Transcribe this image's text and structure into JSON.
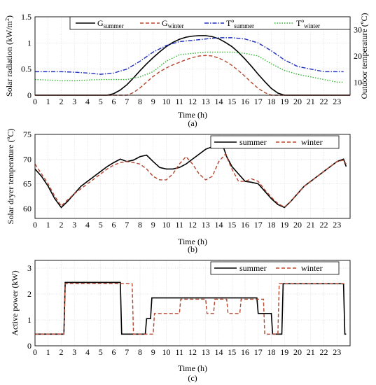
{
  "chart_data": [
    {
      "type": "line",
      "caption": "(a)",
      "xlabel": "Time (h)",
      "ylabel_left": "Solar radiation (kW/m",
      "ylabel_left_sup": "2",
      "ylabel_left_end": ")",
      "ylabel_right": "Outdoor temperature (ºC)",
      "xlim": [
        0,
        24
      ],
      "ylim_left": [
        0,
        1.5
      ],
      "ylim_right": [
        5,
        35
      ],
      "x_ticks": [
        "0",
        "1",
        "2",
        "3",
        "4",
        "5",
        "6",
        "7",
        "8",
        "9",
        "10",
        "11",
        "12",
        "13",
        "14",
        "15",
        "16",
        "17",
        "18",
        "19",
        "20",
        "21",
        "22",
        "23"
      ],
      "y_ticks_left": [
        "0",
        "0.5",
        "1",
        "1.5"
      ],
      "y_ticks_right": [
        "10",
        "20",
        "30"
      ],
      "grid": true,
      "legend_position": "top",
      "series": [
        {
          "name": "G",
          "name_sub": "summer",
          "axis": "left",
          "color": "#000000",
          "style": "solid",
          "x": [
            0,
            5.5,
            6,
            6.5,
            7,
            7.5,
            8,
            8.5,
            9,
            9.5,
            10,
            10.5,
            11,
            11.5,
            12,
            12.5,
            13,
            13.5,
            14,
            14.5,
            15,
            15.5,
            16,
            16.5,
            17,
            17.5,
            18,
            18.5,
            19,
            24
          ],
          "y": [
            0,
            0,
            0.03,
            0.1,
            0.2,
            0.33,
            0.47,
            0.6,
            0.72,
            0.83,
            0.93,
            1.01,
            1.07,
            1.11,
            1.13,
            1.14,
            1.14,
            1.12,
            1.08,
            1.01,
            0.93,
            0.82,
            0.69,
            0.55,
            0.4,
            0.26,
            0.13,
            0.04,
            0,
            0
          ]
        },
        {
          "name": "G",
          "name_sub": "winter",
          "axis": "left",
          "color": "#b5462f",
          "style": "dashed",
          "x": [
            0,
            7,
            7.5,
            8,
            8.5,
            9,
            9.5,
            10,
            10.5,
            11,
            11.5,
            12,
            12.5,
            13,
            13.5,
            14,
            14.5,
            15,
            15.5,
            16,
            16.5,
            17,
            17.5,
            18,
            24
          ],
          "y": [
            0,
            0,
            0.05,
            0.14,
            0.25,
            0.36,
            0.45,
            0.52,
            0.58,
            0.63,
            0.68,
            0.72,
            0.75,
            0.76,
            0.75,
            0.71,
            0.65,
            0.57,
            0.47,
            0.36,
            0.24,
            0.13,
            0.05,
            0,
            0
          ]
        },
        {
          "name": "Tº",
          "name_sub": "summer",
          "axis": "right",
          "color": "#1f2fbf",
          "style": "dashdot",
          "x": [
            0,
            1,
            2,
            3,
            4,
            5,
            6,
            7,
            8,
            9,
            10,
            11,
            12,
            13,
            14,
            15,
            16,
            17,
            18,
            19,
            20,
            21,
            22,
            23,
            23.5
          ],
          "y": [
            14,
            14,
            14,
            13.8,
            13.5,
            13,
            13.5,
            15,
            18,
            21.5,
            24,
            25.5,
            26,
            26.5,
            27,
            27,
            26.5,
            25,
            22,
            18.5,
            16,
            15,
            14,
            14,
            14
          ]
        },
        {
          "name": "Tº",
          "name_sub": "winter",
          "axis": "right",
          "color": "#2fb52f",
          "style": "dotted",
          "x": [
            0,
            1,
            2,
            3,
            4,
            5,
            6,
            7,
            8,
            9,
            10,
            11,
            12,
            13,
            14,
            15,
            16,
            17,
            18,
            19,
            20,
            21,
            22,
            23,
            23.5
          ],
          "y": [
            11,
            10.8,
            10.5,
            10.5,
            10.8,
            11,
            11,
            11,
            12,
            14,
            18,
            20.5,
            21,
            21.5,
            21.5,
            21.5,
            21,
            20,
            17,
            14.5,
            13,
            12,
            11,
            10,
            10
          ]
        }
      ]
    },
    {
      "type": "line",
      "caption": "(b)",
      "xlabel": "Time (h)",
      "ylabel": "Solar dryer temperature (ºC)",
      "xlim": [
        0,
        24
      ],
      "ylim": [
        58,
        75
      ],
      "x_ticks": [
        "0",
        "1",
        "2",
        "3",
        "4",
        "5",
        "6",
        "7",
        "8",
        "9",
        "10",
        "11",
        "12",
        "13",
        "14",
        "15",
        "16",
        "17",
        "18",
        "19",
        "20",
        "21",
        "22",
        "23"
      ],
      "y_ticks": [
        "60",
        "65",
        "70",
        "75"
      ],
      "grid": true,
      "legend_position": "top-right",
      "series": [
        {
          "name": "summer",
          "color": "#000000",
          "style": "solid",
          "x": [
            0,
            0.5,
            1,
            1.5,
            2,
            2.5,
            3,
            3.5,
            4,
            4.5,
            5,
            5.5,
            6,
            6.5,
            7,
            7.5,
            8,
            8.5,
            9,
            9.5,
            10,
            10.5,
            11,
            11.5,
            12,
            12.5,
            13,
            13.5,
            14,
            14.3,
            14.6,
            15,
            15.5,
            16,
            16.5,
            17,
            17.5,
            18,
            18.5,
            19,
            19.5,
            20,
            20.5,
            21,
            21.5,
            22,
            22.5,
            23,
            23.5,
            23.7
          ],
          "y": [
            68,
            66.5,
            64.5,
            62,
            60.2,
            61.5,
            63,
            64.5,
            65.5,
            66.5,
            67.5,
            68.5,
            69.3,
            70,
            69.5,
            69.8,
            70.5,
            70.8,
            69.5,
            68.3,
            68,
            68,
            68.3,
            69,
            70,
            71,
            72,
            72.5,
            72.8,
            72.8,
            70.5,
            68.5,
            67,
            65.5,
            65.3,
            65,
            63.5,
            62,
            60.8,
            60.2,
            61.5,
            63,
            64.5,
            65.5,
            66.5,
            67.5,
            68.5,
            69.5,
            70,
            68.5
          ]
        },
        {
          "name": "winter",
          "color": "#b5462f",
          "style": "dashed",
          "x": [
            0,
            0.5,
            1,
            1.5,
            2,
            2.5,
            3,
            3.5,
            4,
            4.5,
            5,
            5.5,
            6,
            6.5,
            7,
            7.5,
            8,
            8.5,
            9,
            9.5,
            10,
            10.5,
            11,
            11.5,
            12,
            12.5,
            13,
            13.5,
            14,
            14.5,
            15,
            15.5,
            16,
            16.5,
            17,
            17.5,
            18,
            18.5,
            19,
            19.5,
            20,
            20.5,
            21,
            21.5,
            22,
            22.5,
            23,
            23.5,
            23.7
          ],
          "y": [
            69,
            67,
            65,
            62.5,
            60.5,
            61.8,
            63,
            64,
            65,
            66,
            67,
            68,
            68.8,
            69.3,
            69.5,
            69.3,
            69,
            68,
            66.5,
            65.8,
            65.8,
            67,
            69,
            70.5,
            69,
            67,
            65.8,
            66.5,
            69.5,
            71,
            68,
            65.5,
            65.5,
            66,
            65.5,
            63.8,
            62.3,
            61,
            60.3,
            61.5,
            63,
            64.5,
            65.5,
            66.5,
            67.5,
            68.5,
            69.5,
            69.8,
            69
          ]
        }
      ]
    },
    {
      "type": "line",
      "caption": "(c)",
      "xlabel": "Time (h)",
      "ylabel": "Active power (kW)",
      "xlim": [
        0,
        24
      ],
      "ylim": [
        0,
        3.3
      ],
      "x_ticks": [
        "0",
        "1",
        "2",
        "3",
        "4",
        "5",
        "6",
        "7",
        "8",
        "9",
        "10",
        "11",
        "12",
        "13",
        "14",
        "15",
        "16",
        "17",
        "18",
        "19",
        "20",
        "21",
        "22",
        "23"
      ],
      "y_ticks": [
        "0",
        "1",
        "2",
        "3"
      ],
      "grid": true,
      "legend_position": "top-right",
      "series": [
        {
          "name": "summer",
          "color": "#000000",
          "style": "solid",
          "x": [
            0,
            2.2,
            2.3,
            6.5,
            6.6,
            8.4,
            8.5,
            8.8,
            8.9,
            16.9,
            17,
            18,
            18.1,
            18.8,
            18.9,
            23.5,
            23.6,
            23.7
          ],
          "y": [
            0.45,
            0.45,
            2.45,
            2.45,
            0.45,
            0.45,
            1.05,
            1.05,
            1.85,
            1.85,
            1.25,
            1.25,
            0.45,
            0.45,
            2.4,
            2.4,
            0.45,
            0.45
          ]
        },
        {
          "name": "winter",
          "color": "#b5462f",
          "style": "dashed",
          "x": [
            0,
            2.2,
            2.3,
            7.4,
            7.5,
            9,
            9.1,
            11,
            11.1,
            13,
            13.1,
            13.6,
            13.7,
            14.6,
            14.7,
            15.6,
            15.7,
            17.4,
            17.5,
            18.5,
            18.6,
            23.7
          ],
          "y": [
            0.45,
            0.45,
            2.4,
            2.4,
            0.45,
            0.45,
            1.25,
            1.25,
            1.8,
            1.8,
            1.25,
            1.25,
            1.8,
            1.8,
            1.25,
            1.25,
            1.8,
            1.8,
            0.45,
            0.45,
            2.4,
            2.4
          ]
        }
      ]
    }
  ]
}
